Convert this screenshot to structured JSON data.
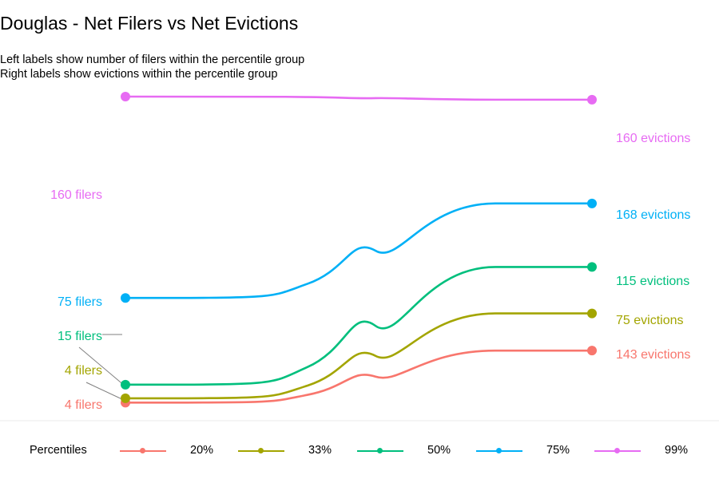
{
  "title": "Douglas - Net Filers vs Net Evictions",
  "subtitle_lines": [
    "Left labels show number of filers within the percentile group",
    "Right labels show evictions within the percentile group"
  ],
  "legend": {
    "title": "Percentiles"
  },
  "chart_data": {
    "type": "line",
    "title": "Douglas - Net Filers vs Net Evictions",
    "x": [
      "filers",
      "evictions"
    ],
    "ylim": [
      0,
      100
    ],
    "grid": false,
    "legend_placement": "bottom",
    "series": [
      {
        "name": "20%",
        "color": "#F8766D",
        "start": 1.2,
        "end": 18.0,
        "left_label": "4 filers",
        "right_label": "143 evictions"
      },
      {
        "name": "33%",
        "color": "#A3A500",
        "start": 2.6,
        "end": 30.0,
        "left_label": "4 filers",
        "right_label": "75 evictions"
      },
      {
        "name": "50%",
        "color": "#00BF7D",
        "start": 7.0,
        "end": 45.0,
        "left_label": "15 filers",
        "right_label": "115 evictions"
      },
      {
        "name": "75%",
        "color": "#00B0F6",
        "start": 35.0,
        "end": 65.5,
        "left_label": "75 filers",
        "right_label": "168 evictions"
      },
      {
        "name": "99%",
        "color": "#E76BF3",
        "start": 100.0,
        "end": 99.0,
        "left_label": "160 filers",
        "right_label": "160 evictions"
      }
    ]
  }
}
